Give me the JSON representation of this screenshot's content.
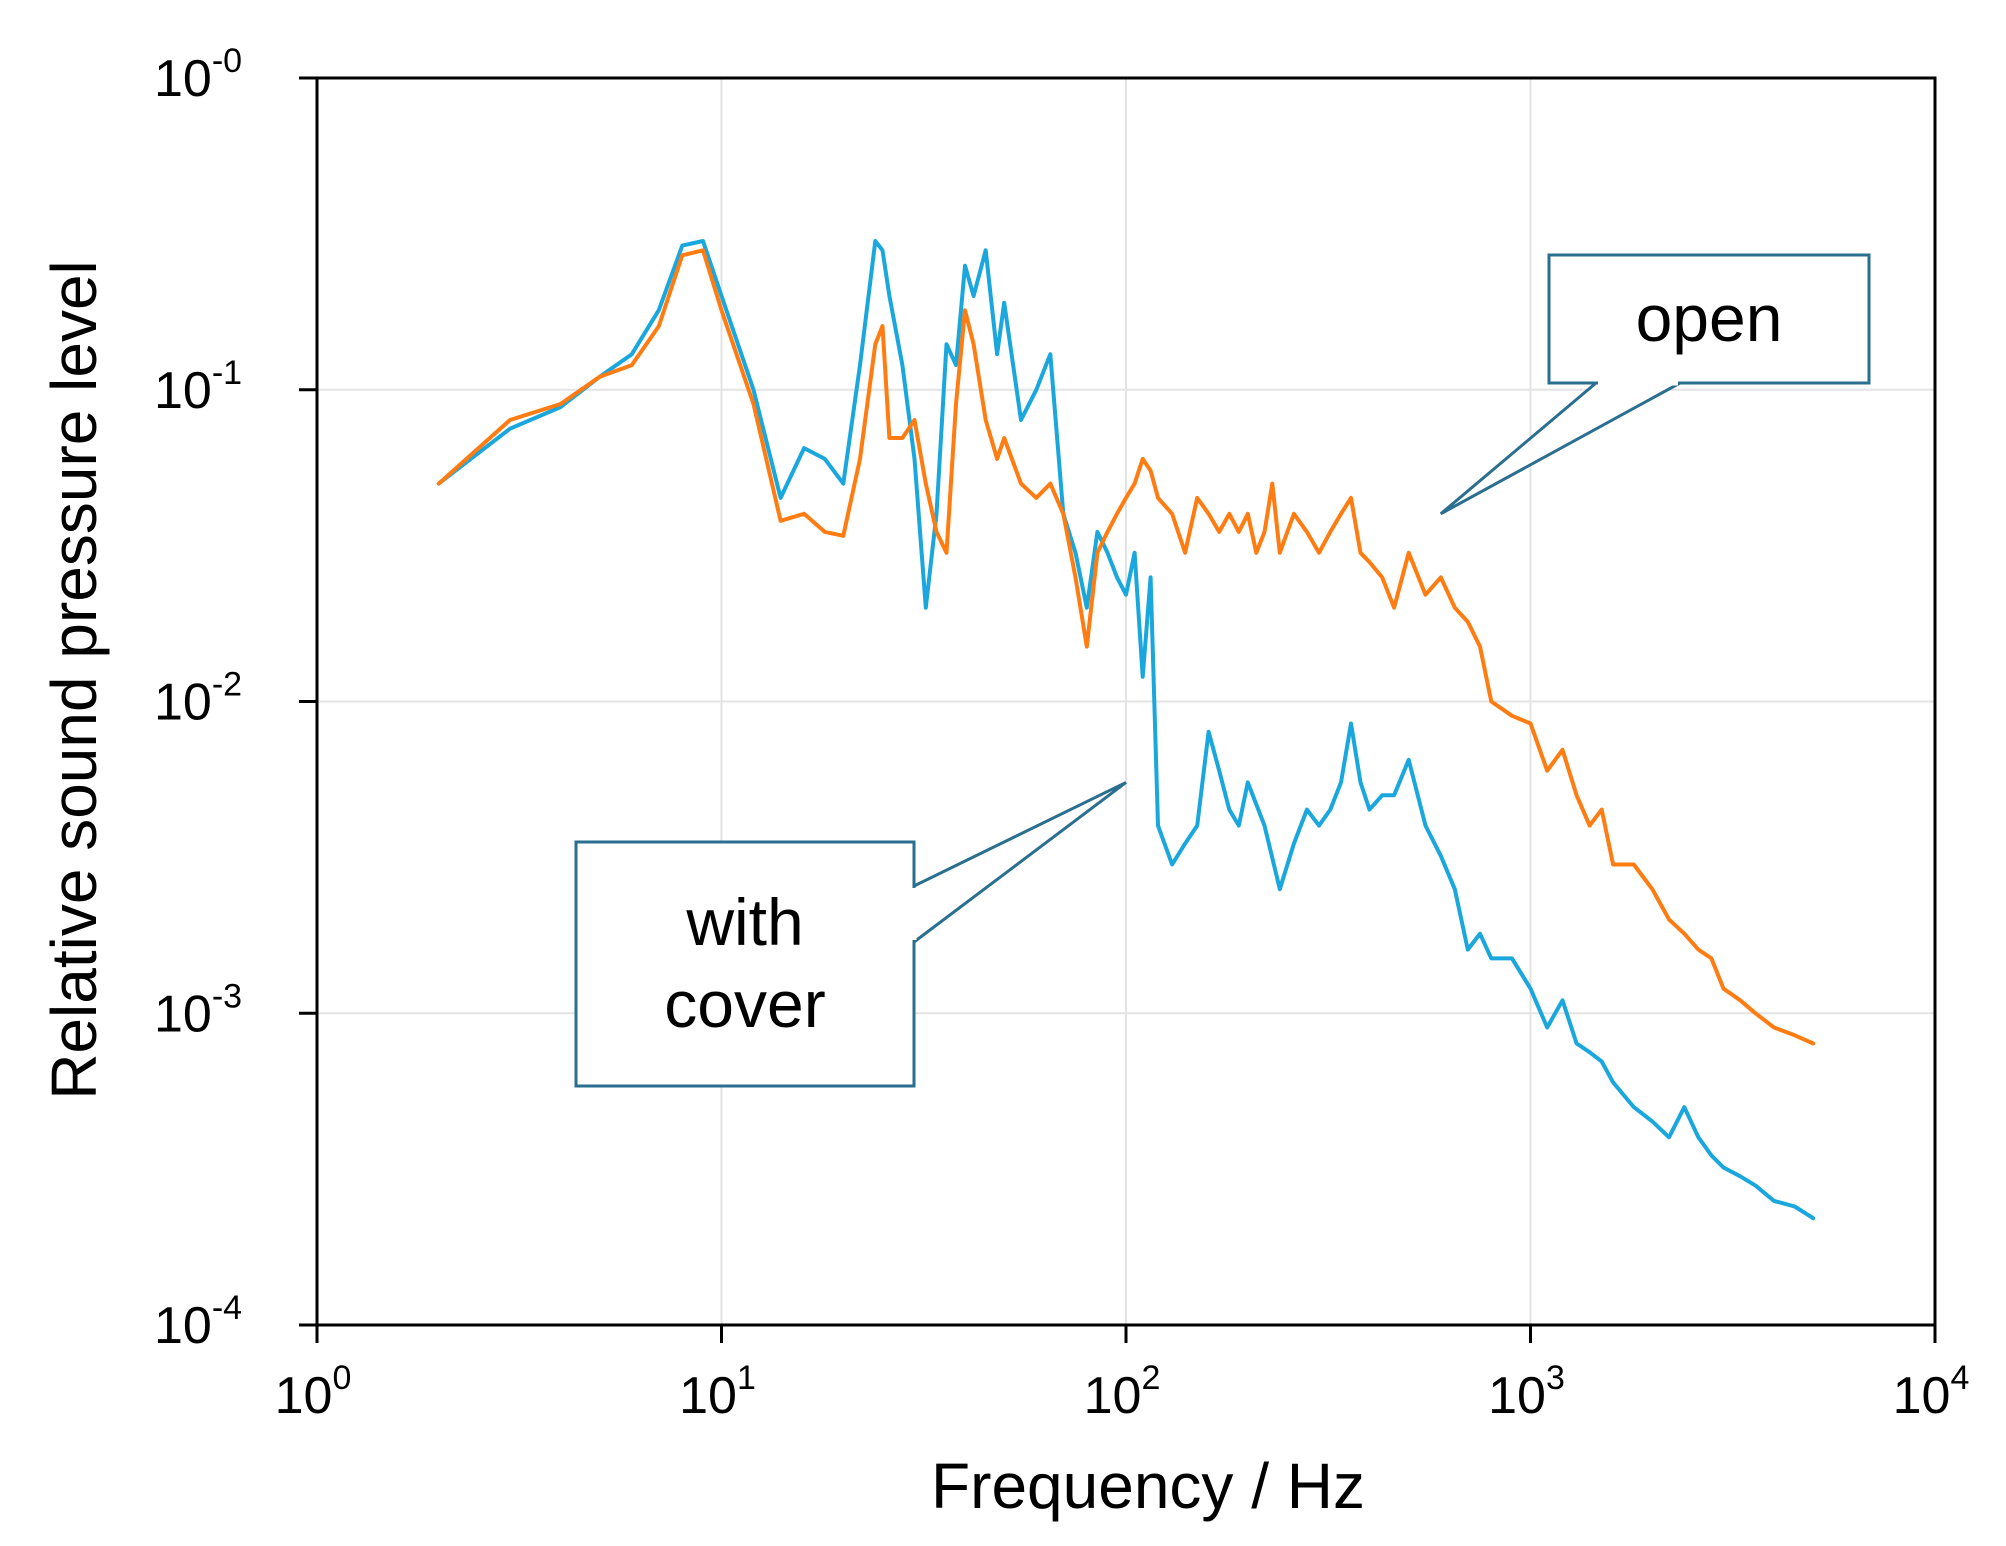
{
  "chart_data": {
    "type": "line",
    "title": "",
    "xlabel": "Frequency / Hz",
    "ylabel": "Relative sound pressure level",
    "xscale": "log",
    "yscale": "log",
    "xlim": [
      1,
      10000
    ],
    "ylim": [
      0.0001,
      1
    ],
    "grid": true,
    "x_ticks": [
      {
        "base": "10",
        "exp": "0",
        "value": 1
      },
      {
        "base": "10",
        "exp": "1",
        "value": 10
      },
      {
        "base": "10",
        "exp": "2",
        "value": 100
      },
      {
        "base": "10",
        "exp": "3",
        "value": 1000
      },
      {
        "base": "10",
        "exp": "4",
        "value": 10000
      }
    ],
    "y_ticks": [
      {
        "base": "10",
        "exp": "-0",
        "value": 1
      },
      {
        "base": "10",
        "exp": "-1",
        "value": 0.1
      },
      {
        "base": "10",
        "exp": "-2",
        "value": 0.01
      },
      {
        "base": "10",
        "exp": "-3",
        "value": 0.001
      },
      {
        "base": "10",
        "exp": "-4",
        "value": 0.0001
      }
    ],
    "series": [
      {
        "name": "with cover",
        "color": "#1aa7dd",
        "x": [
          2,
          3,
          4,
          5,
          6,
          7,
          8,
          9,
          10,
          12,
          14,
          16,
          18,
          20,
          22,
          24,
          25,
          26,
          28,
          30,
          32,
          34,
          36,
          38,
          40,
          42,
          45,
          48,
          50,
          55,
          60,
          65,
          70,
          75,
          80,
          85,
          90,
          95,
          100,
          105,
          110,
          115,
          120,
          130,
          140,
          150,
          160,
          170,
          180,
          190,
          200,
          220,
          240,
          260,
          280,
          300,
          320,
          340,
          360,
          380,
          400,
          430,
          460,
          500,
          550,
          600,
          650,
          700,
          750,
          800,
          900,
          1000,
          1100,
          1200,
          1300,
          1400,
          1500,
          1600,
          1800,
          2000,
          2200,
          2400,
          2600,
          2800,
          3000,
          3300,
          3600,
          4000,
          4500,
          5000
        ],
        "y": [
          0.05,
          0.075,
          0.088,
          0.11,
          0.13,
          0.18,
          0.29,
          0.3,
          0.2,
          0.1,
          0.045,
          0.065,
          0.06,
          0.05,
          0.12,
          0.3,
          0.28,
          0.2,
          0.12,
          0.06,
          0.02,
          0.04,
          0.14,
          0.12,
          0.25,
          0.2,
          0.28,
          0.13,
          0.19,
          0.08,
          0.1,
          0.13,
          0.04,
          0.03,
          0.02,
          0.035,
          0.03,
          0.025,
          0.022,
          0.03,
          0.012,
          0.025,
          0.004,
          0.003,
          0.0035,
          0.004,
          0.008,
          0.006,
          0.0045,
          0.004,
          0.0055,
          0.004,
          0.0025,
          0.0035,
          0.0045,
          0.004,
          0.0045,
          0.0055,
          0.0085,
          0.0055,
          0.0045,
          0.005,
          0.005,
          0.0065,
          0.004,
          0.0032,
          0.0025,
          0.0016,
          0.0018,
          0.0015,
          0.0015,
          0.0012,
          0.0009,
          0.0011,
          0.0008,
          0.00075,
          0.0007,
          0.0006,
          0.0005,
          0.00045,
          0.0004,
          0.0005,
          0.0004,
          0.00035,
          0.00032,
          0.0003,
          0.00028,
          0.00025,
          0.00024,
          0.00022
        ]
      },
      {
        "name": "open",
        "color": "#ff7c12",
        "x": [
          2,
          3,
          4,
          5,
          6,
          7,
          8,
          9,
          10,
          12,
          14,
          16,
          18,
          20,
          22,
          24,
          25,
          26,
          28,
          30,
          32,
          34,
          36,
          38,
          40,
          42,
          45,
          48,
          50,
          55,
          60,
          65,
          70,
          75,
          80,
          85,
          90,
          95,
          100,
          105,
          110,
          115,
          120,
          130,
          140,
          150,
          160,
          170,
          180,
          190,
          200,
          210,
          220,
          230,
          240,
          260,
          280,
          300,
          320,
          340,
          360,
          380,
          400,
          430,
          460,
          500,
          550,
          600,
          650,
          700,
          750,
          800,
          900,
          1000,
          1100,
          1200,
          1300,
          1400,
          1500,
          1600,
          1800,
          2000,
          2200,
          2400,
          2600,
          2800,
          3000,
          3300,
          3600,
          4000,
          4500,
          5000
        ],
        "y": [
          0.05,
          0.08,
          0.09,
          0.11,
          0.12,
          0.16,
          0.27,
          0.28,
          0.18,
          0.09,
          0.038,
          0.04,
          0.035,
          0.034,
          0.06,
          0.14,
          0.16,
          0.07,
          0.07,
          0.08,
          0.05,
          0.035,
          0.03,
          0.09,
          0.18,
          0.14,
          0.08,
          0.06,
          0.07,
          0.05,
          0.045,
          0.05,
          0.04,
          0.025,
          0.015,
          0.03,
          0.035,
          0.04,
          0.045,
          0.05,
          0.06,
          0.055,
          0.045,
          0.04,
          0.03,
          0.045,
          0.04,
          0.035,
          0.04,
          0.035,
          0.04,
          0.03,
          0.035,
          0.05,
          0.03,
          0.04,
          0.035,
          0.03,
          0.035,
          0.04,
          0.045,
          0.03,
          0.028,
          0.025,
          0.02,
          0.03,
          0.022,
          0.025,
          0.02,
          0.018,
          0.015,
          0.01,
          0.009,
          0.0085,
          0.006,
          0.007,
          0.005,
          0.004,
          0.0045,
          0.003,
          0.003,
          0.0025,
          0.002,
          0.0018,
          0.0016,
          0.0015,
          0.0012,
          0.0011,
          0.001,
          0.0009,
          0.00085,
          0.0008
        ]
      }
    ],
    "annotations": [
      {
        "label": "open",
        "lines": [
          "open"
        ],
        "target_series": "open",
        "target_x": 600,
        "target_y": 0.04
      },
      {
        "label": "with cover",
        "lines": [
          "with",
          "cover"
        ],
        "target_series": "with cover",
        "target_x": 100,
        "target_y": 0.0055
      }
    ]
  }
}
